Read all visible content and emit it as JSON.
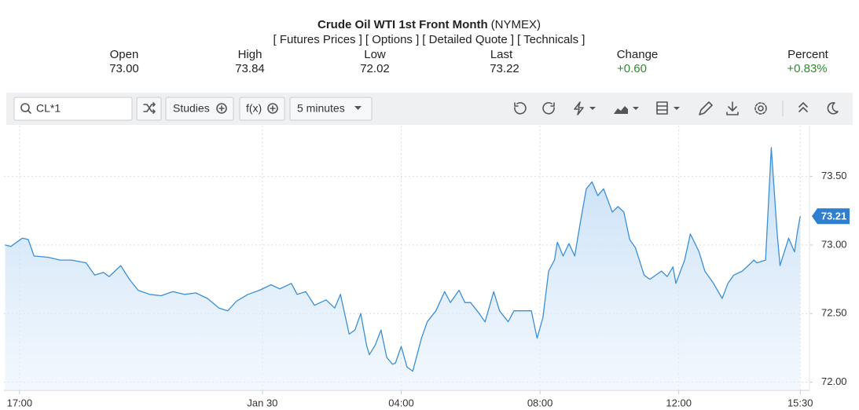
{
  "header": {
    "title": "Crude Oil WTI 1st Front Month",
    "exchange": "(NYMEX)",
    "links": [
      "[ Futures Prices ]",
      "[ Options ]",
      "[ Detailed Quote ]",
      "[ Technicals ]"
    ]
  },
  "quote": [
    {
      "label": "Open",
      "value": "73.00"
    },
    {
      "label": "High",
      "value": "73.84"
    },
    {
      "label": "Low",
      "value": "72.02"
    },
    {
      "label": "Last",
      "value": "73.22"
    },
    {
      "label": "Change",
      "value": "+0.60"
    },
    {
      "label": "Percent",
      "value": "+0.83%"
    }
  ],
  "toolbar": {
    "symbol": "CL*1",
    "studies": "Studies",
    "function": "f(x)",
    "interval": "5 minutes"
  },
  "chart_data": {
    "type": "area",
    "color": "#3a8fd6",
    "x": [
      "16:35",
      "16:45",
      "17:05",
      "17:15",
      "17:25",
      "17:50",
      "18:10",
      "18:30",
      "18:55",
      "19:10",
      "19:25",
      "19:35",
      "19:55",
      "20:10",
      "20:25",
      "20:45",
      "21:05",
      "21:25",
      "21:45",
      "22:05",
      "22:25",
      "22:45",
      "23:00",
      "23:15",
      "23:35",
      "23:55",
      "00:15",
      "00:30",
      "00:50",
      "01:00",
      "01:15",
      "01:30",
      "01:50",
      "02:05",
      "02:15",
      "02:30",
      "02:40",
      "02:50",
      "03:00",
      "03:05",
      "03:15",
      "03:25",
      "03:35",
      "03:45",
      "03:50",
      "04:00",
      "04:10",
      "04:20",
      "04:35",
      "04:45",
      "05:00",
      "05:15",
      "05:25",
      "05:40",
      "05:50",
      "06:00",
      "06:15",
      "06:25",
      "06:40",
      "06:50",
      "07:05",
      "07:15",
      "07:30",
      "07:45",
      "07:55",
      "08:05",
      "08:15",
      "08:25",
      "08:30",
      "08:40",
      "08:50",
      "09:00",
      "09:10",
      "09:20",
      "09:30",
      "09:40",
      "09:50",
      "10:05",
      "10:15",
      "10:25",
      "10:35",
      "10:45",
      "11:00",
      "11:10",
      "11:30",
      "11:40",
      "11:50",
      "11:55",
      "12:10",
      "12:20",
      "12:35",
      "12:45",
      "13:00",
      "13:15",
      "13:25",
      "13:35",
      "13:50",
      "14:10",
      "14:15",
      "14:30",
      "14:40",
      "14:50",
      "14:55",
      "15:10",
      "15:20",
      "15:25",
      "15:30"
    ],
    "values": [
      73.0,
      72.99,
      73.05,
      73.04,
      72.92,
      72.91,
      72.89,
      72.89,
      72.87,
      72.78,
      72.8,
      72.77,
      72.85,
      72.75,
      72.67,
      72.64,
      72.63,
      72.66,
      72.64,
      72.65,
      72.61,
      72.54,
      72.52,
      72.59,
      72.64,
      72.67,
      72.71,
      72.68,
      72.72,
      72.64,
      72.66,
      72.56,
      72.6,
      72.54,
      72.64,
      72.35,
      72.38,
      72.5,
      72.27,
      72.2,
      72.27,
      72.38,
      72.18,
      72.13,
      72.14,
      72.26,
      72.11,
      72.08,
      72.32,
      72.44,
      72.52,
      72.66,
      72.58,
      72.67,
      72.58,
      72.58,
      72.5,
      72.44,
      72.66,
      72.52,
      72.44,
      72.52,
      72.52,
      72.52,
      72.32,
      72.47,
      72.81,
      72.89,
      73.02,
      72.92,
      73.01,
      72.92,
      73.17,
      73.41,
      73.46,
      73.36,
      73.41,
      73.24,
      73.28,
      73.24,
      73.04,
      72.98,
      72.78,
      72.75,
      72.81,
      72.77,
      72.84,
      72.72,
      72.89,
      73.08,
      72.95,
      72.81,
      72.72,
      72.61,
      72.72,
      72.78,
      72.81,
      72.89,
      72.87,
      72.89,
      73.71,
      73.09,
      72.85,
      73.05,
      72.95,
      73.09,
      73.21
    ],
    "last": {
      "value": 73.21,
      "label": "73.21"
    },
    "xlim": [
      "16:33",
      "15:46"
    ],
    "xticks": [
      "17:00",
      {
        "value": "00:00",
        "label": "Jan 30"
      },
      "04:00",
      "08:00",
      "12:00",
      "15:30"
    ],
    "ylim": [
      71.94,
      73.87
    ],
    "yticks": [
      {
        "value": 72,
        "label": "72.00"
      },
      {
        "value": 72.5,
        "label": "72.50"
      },
      {
        "value": 73,
        "label": "73.00"
      },
      {
        "value": 73.5,
        "label": "73.50"
      }
    ],
    "grid": true
  }
}
